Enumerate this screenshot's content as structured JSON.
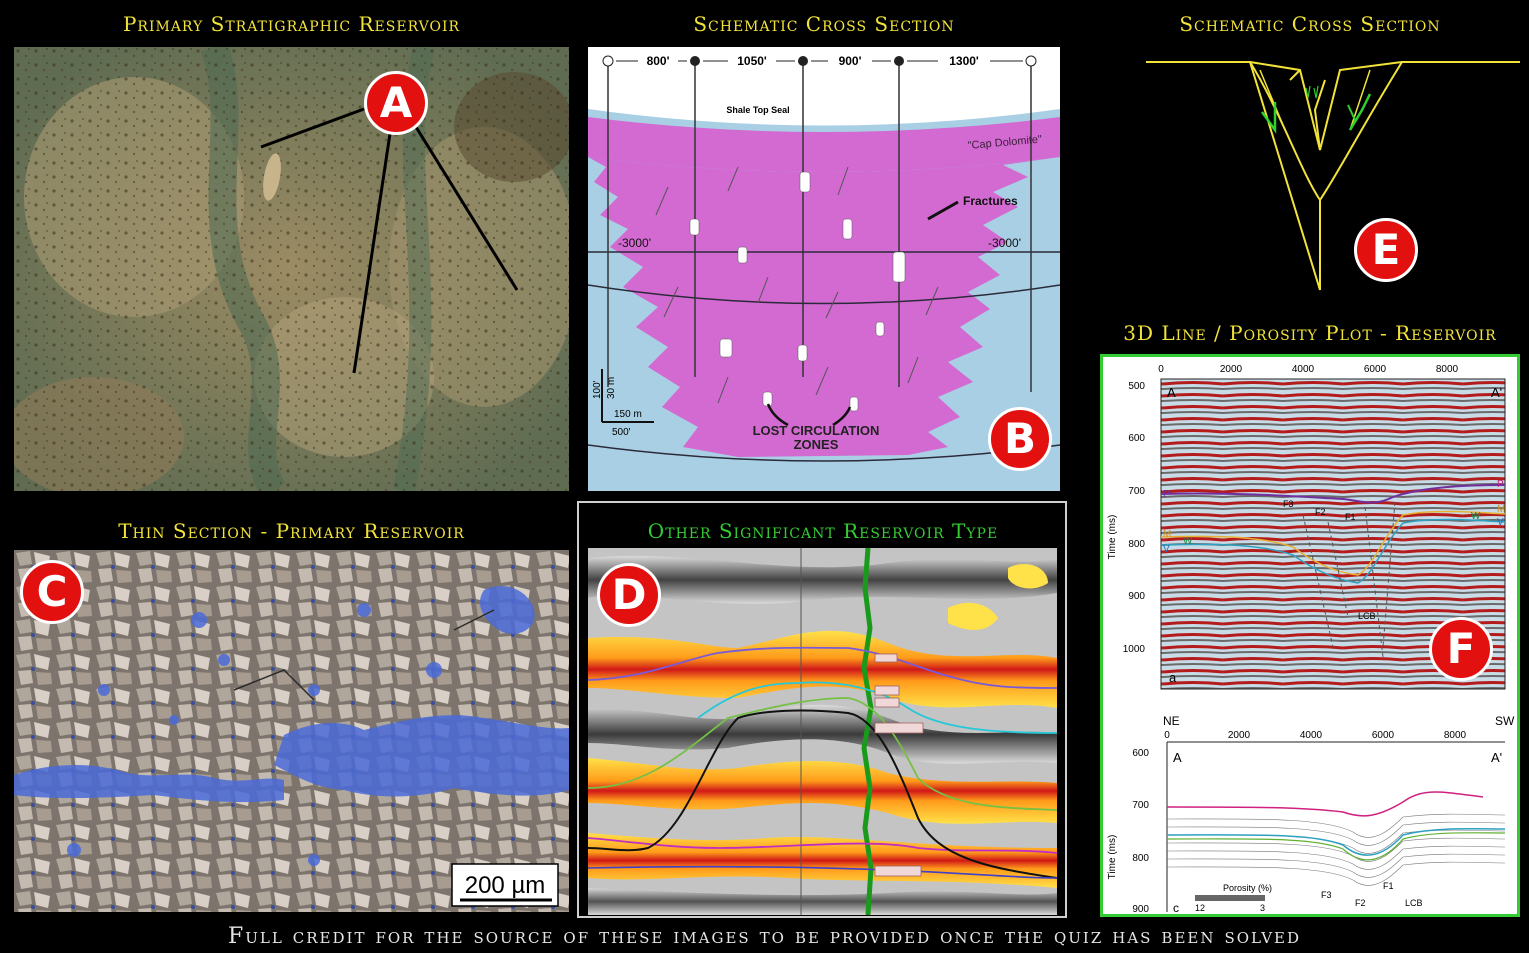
{
  "panels": {
    "a": {
      "title": "Primary Stratigraphic Reservoir",
      "badge": "A"
    },
    "b": {
      "title": "Schematic Cross Section",
      "badge": "B",
      "spacings": [
        "800'",
        "1050'",
        "900'",
        "1300'"
      ],
      "shale_label": "Shale Top Seal",
      "cap_label": "\"Cap Dolomite\"",
      "fractures_label": "Fractures",
      "depth_left": "-3000'",
      "depth_right": "-3000'",
      "lost_label_1": "LOST CIRCULATION",
      "lost_label_2": "ZONES",
      "scale_v_1": "100'",
      "scale_v_2": "30 m",
      "scale_h_1": "150 m",
      "scale_h_2": "500'"
    },
    "c": {
      "title": "Thin Section - Primary Reservoir",
      "badge": "C",
      "scale": "200 µm"
    },
    "d": {
      "title": "Other Significant Reservoir Type",
      "badge": "D"
    },
    "e": {
      "title": "Schematic Cross Section",
      "badge": "E"
    },
    "f": {
      "title": "3D Line / Porosity Plot - Reservoir",
      "badge": "F",
      "top_x_ticks": [
        "0",
        "2000",
        "4000",
        "6000",
        "8000"
      ],
      "top_y_ticks": [
        "500",
        "600",
        "700",
        "800",
        "900",
        "1000"
      ],
      "bottom_x_ticks": [
        "0",
        "2000",
        "4000",
        "6000",
        "8000"
      ],
      "bottom_y_ticks": [
        "600",
        "700",
        "800",
        "900"
      ],
      "y_label": "Time (ms)",
      "corner_a": "A",
      "corner_a2": "A'",
      "panel_a_tag": "a",
      "panel_c_tag": "c",
      "ne": "NE",
      "sw": "SW",
      "horizons": {
        "p": "P",
        "m": "M",
        "w": "W",
        "v": "V"
      },
      "faults": {
        "f1": "F1",
        "f2": "F2",
        "f3": "F3",
        "lcb": "LCB"
      },
      "porosity_label": "Porosity (%)",
      "porosity_min": "12",
      "porosity_max": "3"
    }
  },
  "footer": "Full credit for the source of these images to be provided once the quiz has been solved"
}
